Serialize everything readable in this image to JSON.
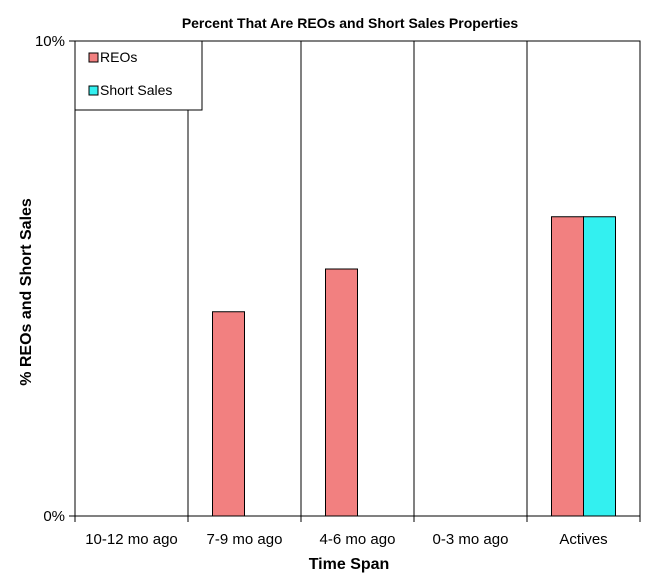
{
  "chart_data": {
    "type": "bar",
    "title": "Percent That Are REOs and Short Sales Properties",
    "xlabel": "Time Span",
    "ylabel": "% REOs and Short Sales",
    "categories": [
      "10-12 mo ago",
      "7-9 mo ago",
      "4-6 mo ago",
      "0-3 mo ago",
      "Actives"
    ],
    "series": [
      {
        "name": "REOs",
        "values": [
          0,
          4.3,
          5.2,
          0,
          6.3
        ],
        "color": "#f28080"
      },
      {
        "name": "Short Sales",
        "values": [
          0,
          0,
          0,
          0,
          6.3
        ],
        "color": "#33f0f0"
      }
    ],
    "ylim": [
      0,
      10
    ],
    "ytick_labels": [
      "0%",
      "10%"
    ],
    "grid": "vertical",
    "legend": "top-left"
  }
}
